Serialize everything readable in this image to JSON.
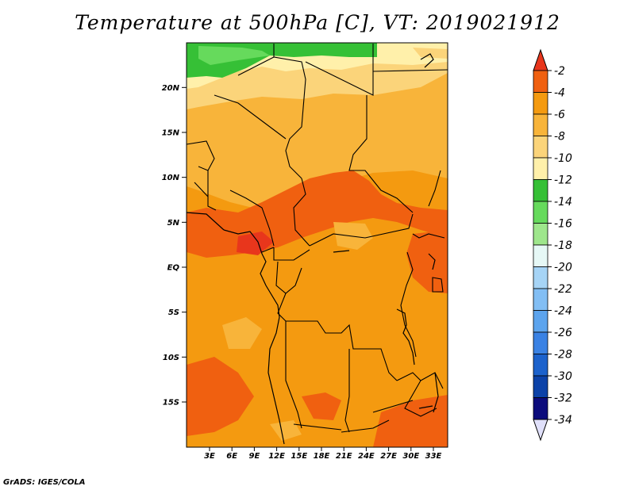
{
  "title": "Temperature at 500hPa [C], VT: 2019021912",
  "credit": "GrADS: IGES/COLA",
  "lat_labels": [
    "20N",
    "15N",
    "10N",
    "5N",
    "EQ",
    "5S",
    "10S",
    "15S"
  ],
  "lat_values": [
    20,
    15,
    10,
    5,
    0,
    -5,
    -10,
    -15
  ],
  "lon_labels": [
    "3E",
    "6E",
    "9E",
    "12E",
    "15E",
    "18E",
    "21E",
    "24E",
    "27E",
    "30E",
    "33E"
  ],
  "lon_values": [
    3,
    6,
    9,
    12,
    15,
    18,
    21,
    24,
    27,
    30,
    33
  ],
  "colorbar": {
    "labels": [
      "-2",
      "-4",
      "-6",
      "-8",
      "-10",
      "-12",
      "-14",
      "-16",
      "-18",
      "-20",
      "-22",
      "-24",
      "-26",
      "-28",
      "-30",
      "-32",
      "-34"
    ],
    "colors": [
      "#e8361c",
      "#f06010",
      "#f49a10",
      "#f8b43a",
      "#fbd47a",
      "#fff0aa",
      "#36c036",
      "#66da5c",
      "#9ee68c",
      "#e6f8f6",
      "#a6d4f6",
      "#82bef4",
      "#5ca4ee",
      "#3a82e4",
      "#1c62cc",
      "#0c42a8",
      "#0c0c7c",
      "#e0e0fa"
    ]
  }
}
